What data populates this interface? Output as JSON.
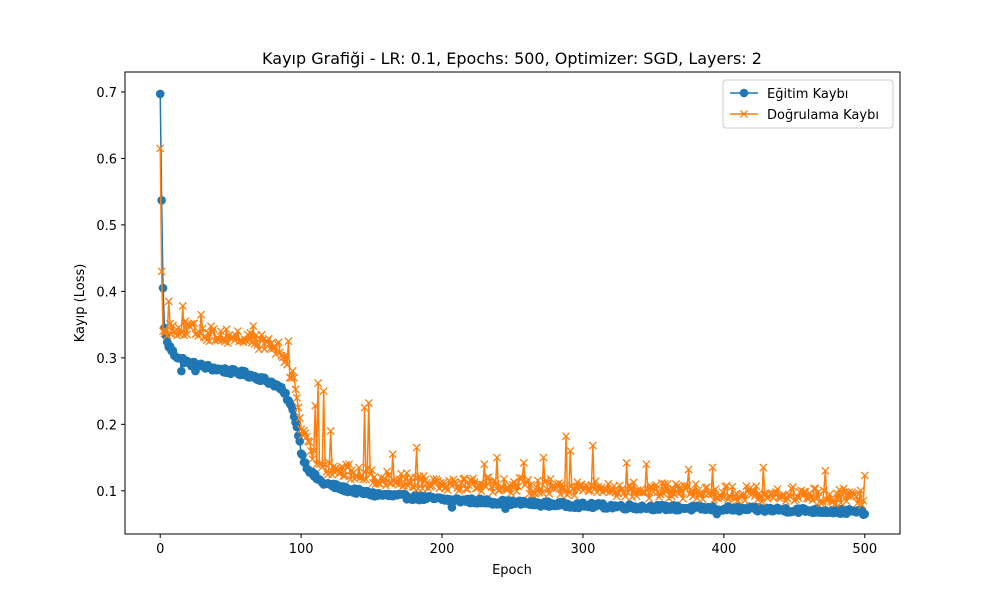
{
  "chart_data": {
    "type": "line",
    "title": "Kayıp Grafiği - LR: 0.1, Epochs: 500, Optimizer: SGD, Layers: 2",
    "xlabel": "Epoch",
    "ylabel": "Kayıp (Loss)",
    "xlim": [
      -25,
      525
    ],
    "ylim": [
      0.035,
      0.73
    ],
    "xticks": [
      0,
      100,
      200,
      300,
      400,
      500
    ],
    "yticks": [
      0.1,
      0.2,
      0.3,
      0.4,
      0.5,
      0.6,
      0.7
    ],
    "grid": false,
    "legend_position": "top-right",
    "series": [
      {
        "name": "Eğitim Kaybı",
        "color": "#1f77b4",
        "marker": "circle",
        "trend": [
          [
            0,
            0.697
          ],
          [
            1,
            0.537
          ],
          [
            2,
            0.405
          ],
          [
            3,
            0.345
          ],
          [
            5,
            0.322
          ],
          [
            10,
            0.305
          ],
          [
            20,
            0.292
          ],
          [
            40,
            0.283
          ],
          [
            60,
            0.276
          ],
          [
            70,
            0.27
          ],
          [
            80,
            0.262
          ],
          [
            85,
            0.255
          ],
          [
            90,
            0.24
          ],
          [
            95,
            0.215
          ],
          [
            98,
            0.185
          ],
          [
            100,
            0.16
          ],
          [
            103,
            0.14
          ],
          [
            108,
            0.125
          ],
          [
            115,
            0.112
          ],
          [
            130,
            0.103
          ],
          [
            150,
            0.095
          ],
          [
            200,
            0.087
          ],
          [
            250,
            0.082
          ],
          [
            300,
            0.078
          ],
          [
            350,
            0.075
          ],
          [
            400,
            0.073
          ],
          [
            450,
            0.071
          ],
          [
            500,
            0.068
          ]
        ],
        "noise": 0.004,
        "spikes": [
          [
            15,
            0.28
          ],
          [
            25,
            0.28
          ],
          [
            207,
            0.075
          ],
          [
            245,
            0.073
          ],
          [
            395,
            0.065
          ],
          [
            500,
            0.065
          ]
        ]
      },
      {
        "name": "Doğrulama Kaybı",
        "color": "#ff7f0e",
        "marker": "x",
        "trend": [
          [
            0,
            0.615
          ],
          [
            1,
            0.43
          ],
          [
            2,
            0.34
          ],
          [
            3,
            0.337
          ],
          [
            5,
            0.345
          ],
          [
            15,
            0.345
          ],
          [
            30,
            0.338
          ],
          [
            50,
            0.332
          ],
          [
            65,
            0.328
          ],
          [
            80,
            0.318
          ],
          [
            85,
            0.31
          ],
          [
            90,
            0.292
          ],
          [
            95,
            0.265
          ],
          [
            98,
            0.23
          ],
          [
            100,
            0.195
          ],
          [
            105,
            0.165
          ],
          [
            110,
            0.15
          ],
          [
            120,
            0.135
          ],
          [
            140,
            0.125
          ],
          [
            160,
            0.118
          ],
          [
            200,
            0.113
          ],
          [
            250,
            0.108
          ],
          [
            300,
            0.104
          ],
          [
            350,
            0.1
          ],
          [
            400,
            0.097
          ],
          [
            450,
            0.094
          ],
          [
            500,
            0.09
          ]
        ],
        "noise": 0.012,
        "spikes": [
          [
            6,
            0.385
          ],
          [
            16,
            0.378
          ],
          [
            29,
            0.365
          ],
          [
            66,
            0.348
          ],
          [
            91,
            0.325
          ],
          [
            110,
            0.228
          ],
          [
            112,
            0.262
          ],
          [
            116,
            0.25
          ],
          [
            121,
            0.19
          ],
          [
            145,
            0.225
          ],
          [
            148,
            0.232
          ],
          [
            165,
            0.155
          ],
          [
            182,
            0.165
          ],
          [
            230,
            0.14
          ],
          [
            239,
            0.15
          ],
          [
            258,
            0.142
          ],
          [
            272,
            0.15
          ],
          [
            288,
            0.182
          ],
          [
            291,
            0.16
          ],
          [
            307,
            0.168
          ],
          [
            331,
            0.142
          ],
          [
            345,
            0.14
          ],
          [
            375,
            0.132
          ],
          [
            392,
            0.135
          ],
          [
            428,
            0.135
          ],
          [
            472,
            0.13
          ],
          [
            500,
            0.123
          ]
        ]
      }
    ]
  }
}
